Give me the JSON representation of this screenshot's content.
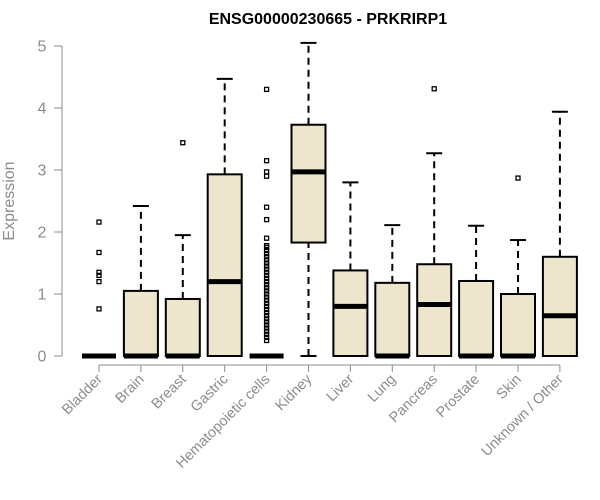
{
  "colors": {
    "box_fill": "#ede6cc",
    "box_stroke": "#000000",
    "median": "#000000",
    "axis": "#8c8c8c",
    "text": "#8c8c8c",
    "title": "#000000"
  },
  "chart_data": {
    "type": "box",
    "title": "ENSG00000230665 - PRKRIRP1",
    "xlabel": "",
    "ylabel": "Expression",
    "ylim": [
      0,
      5.15
    ],
    "yticks": [
      0,
      1,
      2,
      3,
      4,
      5
    ],
    "ytick_labels": [
      "0",
      "1",
      "2",
      "3",
      "4",
      "5"
    ],
    "grid": false,
    "legend": "none",
    "categories": [
      "Bladder",
      "Brain",
      "Breast",
      "Gastric",
      "Hematopoietic cells",
      "Kidney",
      "Liver",
      "Lung",
      "Pancreas",
      "Prostate",
      "Skin",
      "Unknown / Other"
    ],
    "boxes": [
      {
        "category": "Bladder",
        "min": 0,
        "q1": 0,
        "median": 0,
        "q3": 0,
        "max": 0,
        "outliers": [
          0.76,
          1.2,
          1.3,
          1.35,
          1.67,
          2.16
        ]
      },
      {
        "category": "Brain",
        "min": 0,
        "q1": 0,
        "median": 0,
        "q3": 1.05,
        "max": 2.42,
        "outliers": []
      },
      {
        "category": "Breast",
        "min": 0,
        "q1": 0,
        "median": 0,
        "q3": 0.92,
        "max": 1.95,
        "outliers": [
          3.44
        ]
      },
      {
        "category": "Gastric",
        "min": 0,
        "q1": 0,
        "median": 1.2,
        "q3": 2.93,
        "max": 4.47,
        "outliers": []
      },
      {
        "category": "Hematopoietic cells",
        "min": 0,
        "q1": 0,
        "median": 0,
        "q3": 0,
        "max": 0,
        "outliers": [
          0.25,
          0.3,
          0.35,
          0.4,
          0.45,
          0.5,
          0.55,
          0.6,
          0.65,
          0.7,
          0.75,
          0.8,
          0.85,
          0.9,
          0.95,
          1.0,
          1.05,
          1.1,
          1.15,
          1.2,
          1.25,
          1.3,
          1.35,
          1.4,
          1.45,
          1.5,
          1.55,
          1.6,
          1.65,
          1.7,
          1.75,
          1.78,
          1.9,
          2.2,
          2.4,
          2.9,
          2.97,
          3.15,
          4.3
        ]
      },
      {
        "category": "Kidney",
        "min": 0,
        "q1": 1.83,
        "median": 2.97,
        "q3": 3.73,
        "max": 5.05,
        "outliers": []
      },
      {
        "category": "Liver",
        "min": 0,
        "q1": 0,
        "median": 0.8,
        "q3": 1.38,
        "max": 2.8,
        "outliers": []
      },
      {
        "category": "Lung",
        "min": 0,
        "q1": 0,
        "median": 0,
        "q3": 1.18,
        "max": 2.11,
        "outliers": []
      },
      {
        "category": "Pancreas",
        "min": 0,
        "q1": 0,
        "median": 0.83,
        "q3": 1.48,
        "max": 3.27,
        "outliers": [
          4.31
        ]
      },
      {
        "category": "Prostate",
        "min": 0,
        "q1": 0,
        "median": 0,
        "q3": 1.21,
        "max": 2.1,
        "outliers": []
      },
      {
        "category": "Skin",
        "min": 0,
        "q1": 0,
        "median": 0,
        "q3": 1.0,
        "max": 1.87,
        "outliers": [
          2.87
        ]
      },
      {
        "category": "Unknown / Other",
        "min": 0,
        "q1": 0,
        "median": 0.65,
        "q3": 1.6,
        "max": 3.94,
        "outliers": []
      }
    ]
  }
}
